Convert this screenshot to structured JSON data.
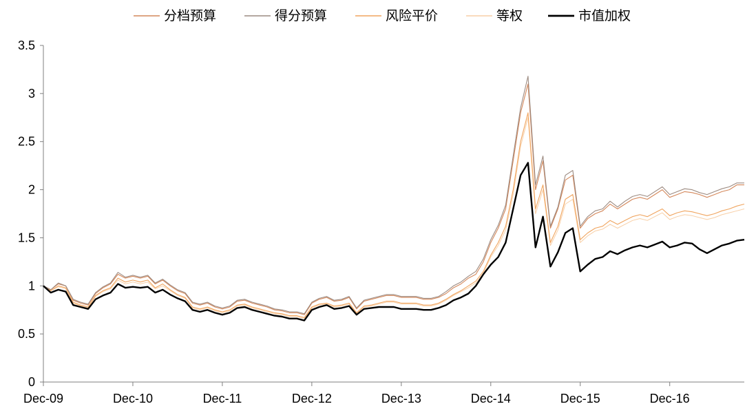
{
  "chart_data": {
    "type": "line",
    "title": "",
    "xlabel": "",
    "ylabel": "",
    "ylim": [
      0,
      3.5
    ],
    "xlim": [
      "2009-12",
      "2017-10"
    ],
    "y_ticks": [
      "0",
      "0.5",
      "1",
      "1.5",
      "2",
      "2.5",
      "3",
      "3.5"
    ],
    "x_ticks": [
      "Dec-09",
      "Dec-10",
      "Dec-11",
      "Dec-12",
      "Dec-13",
      "Dec-14",
      "Dec-15",
      "Dec-16"
    ],
    "grid": false,
    "legend_position": "top",
    "x": [
      "2009-12",
      "2010-01",
      "2010-02",
      "2010-03",
      "2010-04",
      "2010-05",
      "2010-06",
      "2010-07",
      "2010-08",
      "2010-09",
      "2010-10",
      "2010-11",
      "2010-12",
      "2011-01",
      "2011-02",
      "2011-03",
      "2011-04",
      "2011-05",
      "2011-06",
      "2011-07",
      "2011-08",
      "2011-09",
      "2011-10",
      "2011-11",
      "2011-12",
      "2012-01",
      "2012-02",
      "2012-03",
      "2012-04",
      "2012-05",
      "2012-06",
      "2012-07",
      "2012-08",
      "2012-09",
      "2012-10",
      "2012-11",
      "2012-12",
      "2013-01",
      "2013-02",
      "2013-03",
      "2013-04",
      "2013-05",
      "2013-06",
      "2013-07",
      "2013-08",
      "2013-09",
      "2013-10",
      "2013-11",
      "2013-12",
      "2014-01",
      "2014-02",
      "2014-03",
      "2014-04",
      "2014-05",
      "2014-06",
      "2014-07",
      "2014-08",
      "2014-09",
      "2014-10",
      "2014-11",
      "2014-12",
      "2015-01",
      "2015-02",
      "2015-03",
      "2015-04",
      "2015-05",
      "2015-06",
      "2015-07",
      "2015-08",
      "2015-09",
      "2015-10",
      "2015-11",
      "2015-12",
      "2016-01",
      "2016-02",
      "2016-03",
      "2016-04",
      "2016-05",
      "2016-06",
      "2016-07",
      "2016-08",
      "2016-09",
      "2016-10",
      "2016-11",
      "2016-12",
      "2017-01",
      "2017-02",
      "2017-03",
      "2017-04",
      "2017-05",
      "2017-06",
      "2017-07",
      "2017-08",
      "2017-09",
      "2017-10"
    ],
    "series": [
      {
        "name": "分档预算",
        "color": "#d4875a",
        "width": 1.1,
        "values": [
          1.0,
          0.96,
          1.02,
          1.0,
          0.85,
          0.82,
          0.8,
          0.92,
          0.98,
          1.02,
          1.12,
          1.08,
          1.1,
          1.08,
          1.1,
          1.02,
          1.06,
          1.0,
          0.95,
          0.92,
          0.82,
          0.8,
          0.82,
          0.78,
          0.76,
          0.78,
          0.84,
          0.85,
          0.82,
          0.8,
          0.78,
          0.75,
          0.74,
          0.72,
          0.72,
          0.7,
          0.82,
          0.86,
          0.88,
          0.84,
          0.85,
          0.88,
          0.76,
          0.84,
          0.86,
          0.88,
          0.9,
          0.9,
          0.88,
          0.88,
          0.88,
          0.86,
          0.86,
          0.88,
          0.92,
          0.98,
          1.02,
          1.08,
          1.12,
          1.25,
          1.45,
          1.6,
          1.8,
          2.3,
          2.8,
          3.1,
          2.0,
          2.3,
          1.6,
          1.8,
          2.1,
          2.15,
          1.6,
          1.7,
          1.75,
          1.78,
          1.85,
          1.8,
          1.85,
          1.9,
          1.92,
          1.9,
          1.95,
          2.0,
          1.92,
          1.95,
          1.98,
          1.97,
          1.95,
          1.92,
          1.95,
          1.98,
          2.0,
          2.05,
          2.05
        ]
      },
      {
        "name": "得分预算",
        "color": "#9c8a80",
        "width": 1.1,
        "values": [
          1.0,
          0.96,
          1.03,
          1.0,
          0.86,
          0.83,
          0.81,
          0.93,
          0.99,
          1.03,
          1.14,
          1.09,
          1.11,
          1.09,
          1.11,
          1.03,
          1.07,
          1.01,
          0.96,
          0.93,
          0.83,
          0.81,
          0.83,
          0.79,
          0.77,
          0.79,
          0.85,
          0.86,
          0.83,
          0.81,
          0.79,
          0.76,
          0.75,
          0.73,
          0.73,
          0.71,
          0.83,
          0.87,
          0.89,
          0.85,
          0.86,
          0.89,
          0.77,
          0.85,
          0.87,
          0.89,
          0.91,
          0.91,
          0.89,
          0.89,
          0.89,
          0.87,
          0.87,
          0.89,
          0.94,
          1.0,
          1.04,
          1.1,
          1.15,
          1.28,
          1.48,
          1.63,
          1.84,
          2.35,
          2.85,
          3.18,
          2.05,
          2.35,
          1.62,
          1.82,
          2.15,
          2.2,
          1.62,
          1.72,
          1.78,
          1.8,
          1.88,
          1.82,
          1.88,
          1.93,
          1.95,
          1.93,
          1.98,
          2.03,
          1.95,
          1.98,
          2.01,
          2.0,
          1.97,
          1.95,
          1.98,
          2.01,
          2.03,
          2.07,
          2.07
        ]
      },
      {
        "name": "风险平价",
        "color": "#f0a45e",
        "width": 1.1,
        "values": [
          1.0,
          0.95,
          1.0,
          0.98,
          0.83,
          0.8,
          0.78,
          0.9,
          0.95,
          0.98,
          1.08,
          1.04,
          1.06,
          1.04,
          1.06,
          0.98,
          1.02,
          0.96,
          0.91,
          0.88,
          0.78,
          0.76,
          0.78,
          0.75,
          0.73,
          0.75,
          0.8,
          0.81,
          0.78,
          0.76,
          0.74,
          0.72,
          0.71,
          0.69,
          0.69,
          0.67,
          0.78,
          0.81,
          0.82,
          0.79,
          0.8,
          0.82,
          0.72,
          0.79,
          0.8,
          0.82,
          0.84,
          0.84,
          0.82,
          0.82,
          0.82,
          0.8,
          0.8,
          0.82,
          0.86,
          0.91,
          0.95,
          1.0,
          1.05,
          1.15,
          1.32,
          1.45,
          1.62,
          2.0,
          2.5,
          2.8,
          1.8,
          2.05,
          1.45,
          1.62,
          1.9,
          1.95,
          1.48,
          1.55,
          1.6,
          1.62,
          1.68,
          1.64,
          1.68,
          1.72,
          1.74,
          1.72,
          1.76,
          1.8,
          1.73,
          1.76,
          1.78,
          1.77,
          1.75,
          1.73,
          1.75,
          1.78,
          1.8,
          1.83,
          1.85
        ]
      },
      {
        "name": "等权",
        "color": "#f8cfa6",
        "width": 1.0,
        "values": [
          1.0,
          0.95,
          0.99,
          0.97,
          0.82,
          0.79,
          0.77,
          0.89,
          0.94,
          0.97,
          1.06,
          1.02,
          1.04,
          1.02,
          1.04,
          0.97,
          1.0,
          0.95,
          0.9,
          0.87,
          0.77,
          0.75,
          0.77,
          0.74,
          0.72,
          0.74,
          0.79,
          0.8,
          0.77,
          0.75,
          0.73,
          0.71,
          0.7,
          0.68,
          0.68,
          0.66,
          0.77,
          0.8,
          0.81,
          0.78,
          0.79,
          0.81,
          0.71,
          0.78,
          0.79,
          0.81,
          0.83,
          0.83,
          0.81,
          0.81,
          0.81,
          0.79,
          0.79,
          0.81,
          0.85,
          0.9,
          0.94,
          0.98,
          1.03,
          1.13,
          1.3,
          1.42,
          1.58,
          1.95,
          2.45,
          2.75,
          1.75,
          2.0,
          1.42,
          1.58,
          1.85,
          1.9,
          1.45,
          1.52,
          1.57,
          1.59,
          1.64,
          1.6,
          1.64,
          1.68,
          1.7,
          1.68,
          1.72,
          1.76,
          1.69,
          1.72,
          1.74,
          1.73,
          1.71,
          1.69,
          1.71,
          1.74,
          1.76,
          1.78,
          1.8
        ]
      },
      {
        "name": "市值加权",
        "color": "#000000",
        "width": 2.4,
        "values": [
          1.0,
          0.93,
          0.96,
          0.94,
          0.8,
          0.78,
          0.76,
          0.86,
          0.9,
          0.93,
          1.02,
          0.98,
          0.99,
          0.98,
          0.99,
          0.93,
          0.96,
          0.91,
          0.87,
          0.84,
          0.75,
          0.73,
          0.75,
          0.72,
          0.7,
          0.72,
          0.77,
          0.78,
          0.75,
          0.73,
          0.71,
          0.69,
          0.68,
          0.66,
          0.66,
          0.64,
          0.75,
          0.78,
          0.8,
          0.76,
          0.77,
          0.79,
          0.7,
          0.76,
          0.77,
          0.78,
          0.78,
          0.78,
          0.76,
          0.76,
          0.76,
          0.75,
          0.75,
          0.77,
          0.8,
          0.85,
          0.88,
          0.92,
          1.0,
          1.12,
          1.22,
          1.3,
          1.45,
          1.8,
          2.15,
          2.28,
          1.4,
          1.72,
          1.2,
          1.35,
          1.55,
          1.6,
          1.15,
          1.22,
          1.28,
          1.3,
          1.36,
          1.33,
          1.37,
          1.4,
          1.42,
          1.4,
          1.43,
          1.46,
          1.4,
          1.42,
          1.45,
          1.44,
          1.38,
          1.34,
          1.38,
          1.42,
          1.44,
          1.47,
          1.48
        ]
      }
    ]
  }
}
